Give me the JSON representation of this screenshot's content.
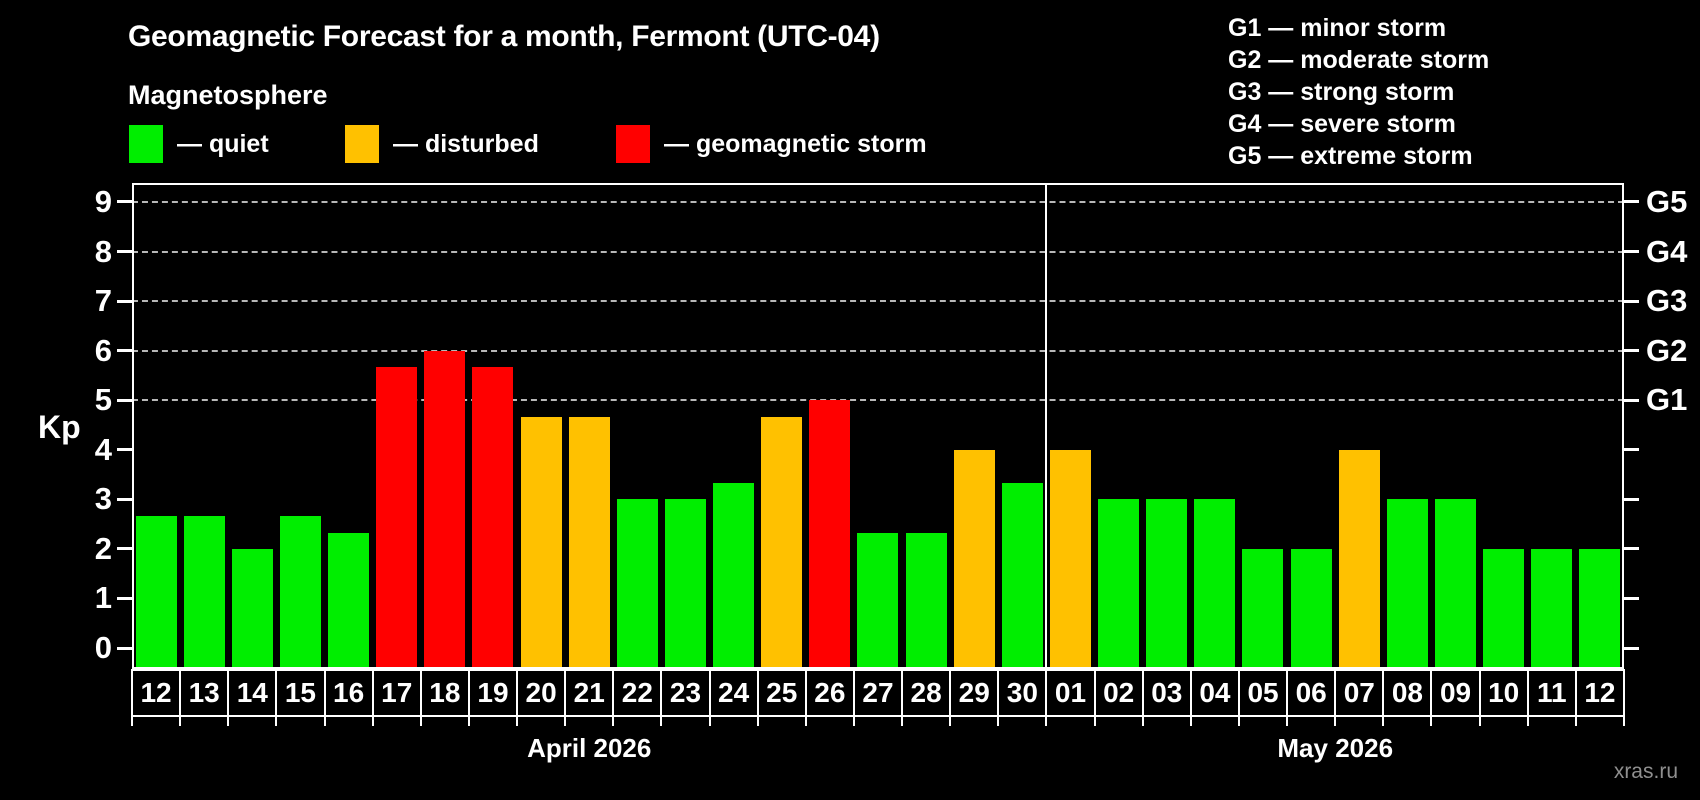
{
  "header": {
    "title": "Geomagnetic Forecast for a month, Fermont (UTC-04)",
    "subtitle": "Magnetosphere"
  },
  "legend": {
    "items": [
      {
        "label": "— quiet",
        "level": "quiet"
      },
      {
        "label": "— disturbed",
        "level": "disturbed"
      },
      {
        "label": "— geomagnetic storm",
        "level": "storm"
      }
    ]
  },
  "g_legend": {
    "items": [
      "G1 — minor storm",
      "G2 — moderate storm",
      "G3 — strong storm",
      "G4 — severe storm",
      "G5 — extreme storm"
    ]
  },
  "axis": {
    "ylabel": "Kp"
  },
  "watermark": "xras.ru",
  "chart_data": {
    "type": "bar",
    "title": "Geomagnetic Forecast for a month, Fermont (UTC-04)",
    "subtitle": "Magnetosphere",
    "ylabel": "Kp",
    "ylim": [
      0,
      9
    ],
    "y_ticks": [
      0,
      1,
      2,
      3,
      4,
      5,
      6,
      7,
      8,
      9
    ],
    "grid_levels": [
      5,
      6,
      7,
      8,
      9
    ],
    "right_axis_labels": {
      "5": "G1",
      "6": "G2",
      "7": "G3",
      "8": "G4",
      "9": "G5"
    },
    "legend_position": "top",
    "colors": {
      "quiet": "#00ee00",
      "disturbed": "#ffc100",
      "storm": "#ff0000"
    },
    "months": [
      {
        "label": "April 2026",
        "days": 19
      },
      {
        "label": "May 2026",
        "days": 12
      }
    ],
    "days": [
      {
        "day": "12",
        "value": 2.67,
        "level": "quiet"
      },
      {
        "day": "13",
        "value": 2.67,
        "level": "quiet"
      },
      {
        "day": "14",
        "value": 2.0,
        "level": "quiet"
      },
      {
        "day": "15",
        "value": 2.67,
        "level": "quiet"
      },
      {
        "day": "16",
        "value": 2.33,
        "level": "quiet"
      },
      {
        "day": "17",
        "value": 5.67,
        "level": "storm"
      },
      {
        "day": "18",
        "value": 6.0,
        "level": "storm"
      },
      {
        "day": "19",
        "value": 5.67,
        "level": "storm"
      },
      {
        "day": "20",
        "value": 4.67,
        "level": "disturbed"
      },
      {
        "day": "21",
        "value": 4.67,
        "level": "disturbed"
      },
      {
        "day": "22",
        "value": 3.0,
        "level": "quiet"
      },
      {
        "day": "23",
        "value": 3.0,
        "level": "quiet"
      },
      {
        "day": "24",
        "value": 3.33,
        "level": "quiet"
      },
      {
        "day": "25",
        "value": 4.67,
        "level": "disturbed"
      },
      {
        "day": "26",
        "value": 5.0,
        "level": "storm"
      },
      {
        "day": "27",
        "value": 2.33,
        "level": "quiet"
      },
      {
        "day": "28",
        "value": 2.33,
        "level": "quiet"
      },
      {
        "day": "29",
        "value": 4.0,
        "level": "disturbed"
      },
      {
        "day": "30",
        "value": 3.33,
        "level": "quiet"
      },
      {
        "day": "01",
        "value": 4.0,
        "level": "disturbed"
      },
      {
        "day": "02",
        "value": 3.0,
        "level": "quiet"
      },
      {
        "day": "03",
        "value": 3.0,
        "level": "quiet"
      },
      {
        "day": "04",
        "value": 3.0,
        "level": "quiet"
      },
      {
        "day": "05",
        "value": 2.0,
        "level": "quiet"
      },
      {
        "day": "06",
        "value": 2.0,
        "level": "quiet"
      },
      {
        "day": "07",
        "value": 4.0,
        "level": "disturbed"
      },
      {
        "day": "08",
        "value": 3.0,
        "level": "quiet"
      },
      {
        "day": "09",
        "value": 3.0,
        "level": "quiet"
      },
      {
        "day": "10",
        "value": 2.0,
        "level": "quiet"
      },
      {
        "day": "11",
        "value": 2.0,
        "level": "quiet"
      },
      {
        "day": "12",
        "value": 2.0,
        "level": "quiet"
      }
    ]
  }
}
